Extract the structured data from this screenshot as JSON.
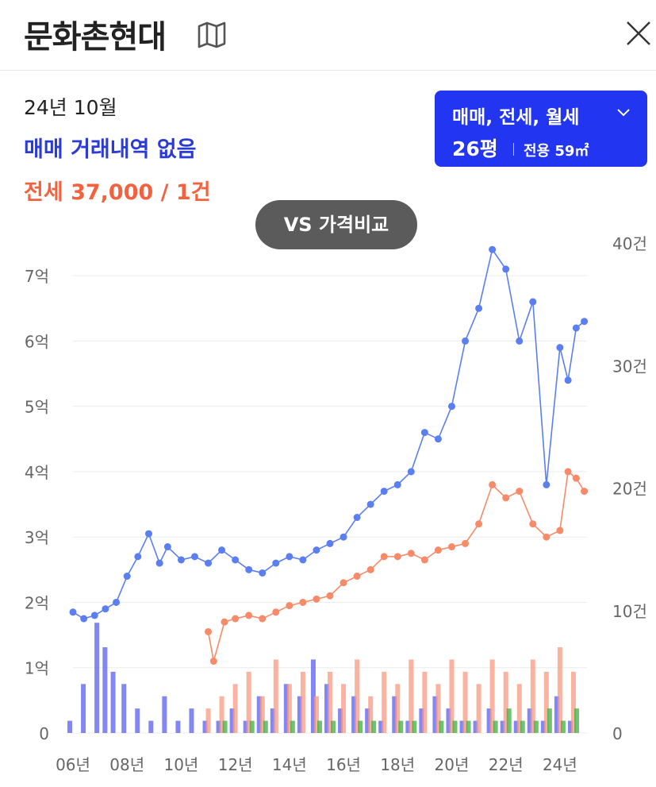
{
  "header": {
    "title": "문화촌현대",
    "map_icon": "map-icon",
    "close_icon": "close-icon"
  },
  "summary": {
    "date": "24년 10월",
    "sale": "매매 거래내역 없음",
    "jeonse": "전세 37,000 / 1건"
  },
  "filter": {
    "types": "매매, 전세, 월세",
    "pyeong": "26평",
    "area": "전용 59㎡",
    "icon": "chevron-down-icon"
  },
  "vs_button": {
    "label": "VS 가격비교"
  },
  "colors": {
    "sale": "#5b7ff0",
    "jeonse": "#f78a68",
    "vol_sale": "#5a5ff0",
    "vol_jeonse": "#f99a82",
    "vol_wolse": "#3fae3f",
    "accent": "#2235f0"
  },
  "chart_data": {
    "type": "line",
    "y_left": {
      "labels": [
        "0",
        "1억",
        "2억",
        "3억",
        "4억",
        "5억",
        "6억",
        "7억"
      ],
      "range_eok": [
        0,
        7.5
      ]
    },
    "y_right": {
      "labels": [
        "0",
        "10건",
        "20건",
        "30건",
        "40건"
      ],
      "range_count": [
        0,
        40
      ]
    },
    "x_labels": [
      "06년",
      "08년",
      "10년",
      "12년",
      "14년",
      "16년",
      "18년",
      "20년",
      "22년",
      "24년"
    ],
    "x_range_year": [
      2006,
      2025
    ],
    "series": [
      {
        "name": "매매",
        "color": "#5b7ff0",
        "x": [
          2006.0,
          2006.4,
          2006.8,
          2007.2,
          2007.6,
          2008.0,
          2008.4,
          2008.8,
          2009.2,
          2009.5,
          2010.0,
          2010.5,
          2011.0,
          2011.5,
          2012.0,
          2012.5,
          2013.0,
          2013.5,
          2014.0,
          2014.5,
          2015.0,
          2015.5,
          2016.0,
          2016.5,
          2017.0,
          2017.5,
          2018.0,
          2018.5,
          2019.0,
          2019.5,
          2020.0,
          2020.5,
          2021.0,
          2021.5,
          2022.0,
          2022.5,
          2023.0,
          2023.5,
          2024.0,
          2024.3,
          2024.6,
          2024.9
        ],
        "y": [
          1.85,
          1.75,
          1.8,
          1.9,
          2.0,
          2.4,
          2.7,
          3.05,
          2.6,
          2.85,
          2.65,
          2.7,
          2.6,
          2.8,
          2.65,
          2.5,
          2.45,
          2.6,
          2.7,
          2.65,
          2.8,
          2.9,
          3.0,
          3.3,
          3.5,
          3.7,
          3.8,
          4.0,
          4.6,
          4.5,
          5.0,
          6.0,
          6.5,
          7.4,
          7.1,
          6.0,
          6.6,
          3.8,
          5.9,
          5.4,
          6.2,
          6.3
        ]
      },
      {
        "name": "전세",
        "color": "#f78a68",
        "x": [
          2011.0,
          2011.2,
          2011.6,
          2012.0,
          2012.5,
          2013.0,
          2013.5,
          2014.0,
          2014.5,
          2015.0,
          2015.5,
          2016.0,
          2016.5,
          2017.0,
          2017.5,
          2018.0,
          2018.5,
          2019.0,
          2019.5,
          2020.0,
          2020.5,
          2021.0,
          2021.5,
          2022.0,
          2022.5,
          2023.0,
          2023.5,
          2024.0,
          2024.3,
          2024.6,
          2024.9
        ],
        "y": [
          1.55,
          1.1,
          1.7,
          1.75,
          1.8,
          1.75,
          1.85,
          1.95,
          2.0,
          2.05,
          2.1,
          2.3,
          2.4,
          2.5,
          2.7,
          2.7,
          2.75,
          2.65,
          2.8,
          2.85,
          2.9,
          3.2,
          3.8,
          3.6,
          3.7,
          3.2,
          3.0,
          3.1,
          4.0,
          3.9,
          3.7
        ]
      }
    ],
    "volume": {
      "x": [
        2006.0,
        2006.5,
        2007.0,
        2007.3,
        2007.6,
        2008.0,
        2008.5,
        2009.0,
        2009.5,
        2010.0,
        2010.5,
        2011.0,
        2011.5,
        2012.0,
        2012.5,
        2013.0,
        2013.5,
        2014.0,
        2014.5,
        2015.0,
        2015.5,
        2016.0,
        2016.5,
        2017.0,
        2017.5,
        2018.0,
        2018.5,
        2019.0,
        2019.5,
        2020.0,
        2020.5,
        2021.0,
        2021.5,
        2022.0,
        2022.5,
        2023.0,
        2023.5,
        2024.0,
        2024.5
      ],
      "sale": [
        1,
        4,
        9,
        7,
        5,
        4,
        2,
        1,
        3,
        1,
        2,
        1,
        1,
        2,
        1,
        3,
        2,
        4,
        3,
        6,
        4,
        2,
        3,
        2,
        1,
        3,
        1,
        2,
        3,
        2,
        1,
        1,
        2,
        1,
        1,
        2,
        1,
        3,
        1
      ],
      "jeonse": [
        0,
        0,
        0,
        0,
        0,
        0,
        0,
        0,
        0,
        0,
        0,
        2,
        3,
        4,
        5,
        3,
        6,
        4,
        5,
        3,
        5,
        4,
        6,
        3,
        5,
        4,
        6,
        5,
        4,
        6,
        5,
        4,
        6,
        5,
        4,
        6,
        5,
        7,
        5
      ],
      "wolse": [
        0,
        0,
        0,
        0,
        0,
        0,
        0,
        0,
        0,
        0,
        0,
        0,
        1,
        0,
        1,
        1,
        0,
        1,
        0,
        1,
        1,
        0,
        1,
        1,
        0,
        1,
        1,
        0,
        1,
        1,
        1,
        0,
        1,
        2,
        1,
        1,
        2,
        1,
        2
      ]
    }
  }
}
